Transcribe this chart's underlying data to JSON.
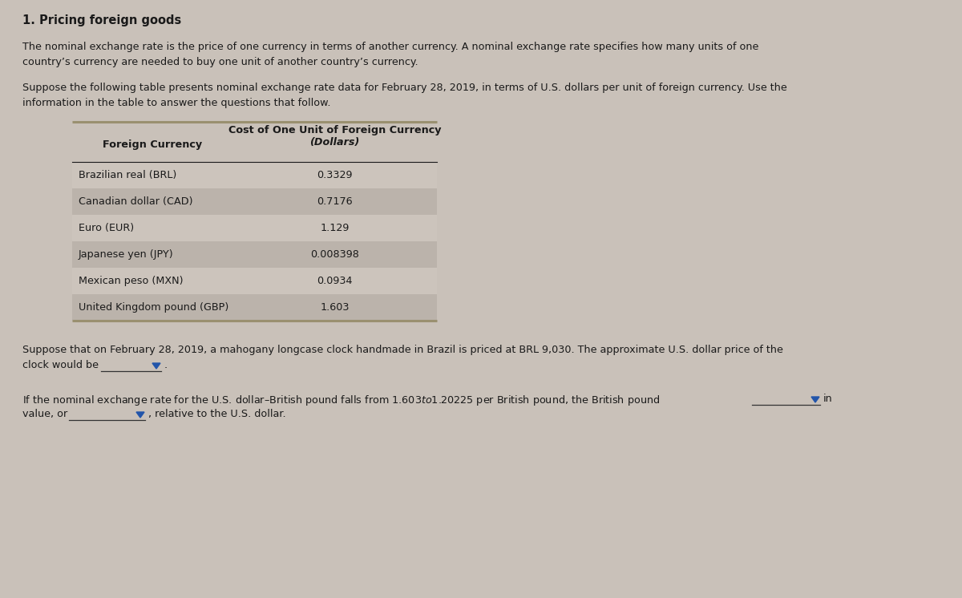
{
  "title": "1. Pricing foreign goods",
  "bg_color": "#c9c1b9",
  "text_color": "#1a1a1a",
  "para1_line1": "The nominal exchange rate is the price of one currency in terms of another currency. A nominal exchange rate specifies how many units of one",
  "para1_line2": "country’s currency are needed to buy one unit of another country’s currency.",
  "para2_line1": "Suppose the following table presents nominal exchange rate data for February 28, 2019, in terms of U.S. dollars per unit of foreign currency. Use the",
  "para2_line2": "information in the table to answer the questions that follow.",
  "table_col1_header": "Foreign Currency",
  "table_col2_header_line1": "Cost of One Unit of Foreign Currency",
  "table_col2_header_line2": "(Dollars)",
  "table_rows": [
    [
      "Brazilian real (BRL)",
      "0.3329"
    ],
    [
      "Canadian dollar (CAD)",
      "0.7176"
    ],
    [
      "Euro (EUR)",
      "1.129"
    ],
    [
      "Japanese yen (JPY)",
      "0.008398"
    ],
    [
      "Mexican peso (MXN)",
      "0.0934"
    ],
    [
      "United Kingdom pound (GBP)",
      "1.603"
    ]
  ],
  "table_row_light": "#ccc4bc",
  "table_row_dark": "#bbb3ab",
  "table_line_color": "#9a9070",
  "para3_line1": "Suppose that on February 28, 2019, a mahogany longcase clock handmade in Brazil is priced at BRL 9,030. The approximate U.S. dollar price of the",
  "para3_line2": "clock would be",
  "para4_line1": "If the nominal exchange rate for the U.S. dollar–British pound falls from $1.603 to $1.20225 per British pound, the British pound",
  "para4_line2_start": "value, or",
  "para4_line2_end": ", relative to the U.S. dollar.",
  "para4_line1_end": "in",
  "dropdown_tri_color": "#2255aa",
  "underline_color": "#333333",
  "font_size_title": 10.5,
  "font_size_body": 9.2,
  "font_size_table": 9.2
}
